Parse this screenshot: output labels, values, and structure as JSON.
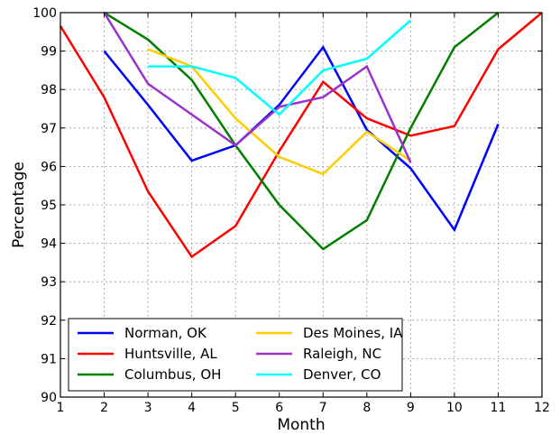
{
  "chart_data": {
    "type": "line",
    "title": "",
    "xlabel": "Month",
    "ylabel": "Percentage",
    "xlim": [
      1,
      12
    ],
    "ylim": [
      90,
      100
    ],
    "xticks": [
      1,
      2,
      3,
      4,
      5,
      6,
      7,
      8,
      9,
      10,
      11,
      12
    ],
    "yticks": [
      90,
      91,
      92,
      93,
      94,
      95,
      96,
      97,
      98,
      99,
      100
    ],
    "grid": true,
    "legend_position": "lower-left",
    "series": [
      {
        "name": "Norman, OK",
        "color": "#0000ff",
        "x": [
          2,
          3,
          4,
          5,
          6,
          7,
          8,
          9,
          10,
          11
        ],
        "y": [
          99.0,
          97.6,
          96.15,
          96.55,
          97.6,
          99.1,
          96.95,
          95.95,
          94.35,
          97.1
        ]
      },
      {
        "name": "Huntsville, AL",
        "color": "#ff0000",
        "x": [
          1,
          2,
          3,
          4,
          5,
          6,
          7,
          8,
          9,
          10,
          11,
          12
        ],
        "y": [
          99.65,
          97.8,
          95.35,
          93.65,
          94.45,
          96.4,
          98.2,
          97.25,
          96.8,
          97.05,
          99.05,
          100.0
        ]
      },
      {
        "name": "Columbus, OH",
        "color": "#007f00",
        "x": [
          2,
          3,
          4,
          5,
          6,
          7,
          8,
          9,
          10,
          11
        ],
        "y": [
          100.0,
          99.3,
          98.25,
          96.55,
          95.0,
          93.85,
          94.6,
          97.0,
          99.1,
          100.0
        ]
      },
      {
        "name": "Des Moines, IA",
        "color": "#ffcc00",
        "x": [
          3,
          4,
          5,
          6,
          7,
          8,
          9
        ],
        "y": [
          99.05,
          98.6,
          97.25,
          96.25,
          95.8,
          96.9,
          96.15
        ]
      },
      {
        "name": "Raleigh, NC",
        "color": "#9933cc",
        "x": [
          2,
          3,
          4,
          5,
          6,
          7,
          8,
          9
        ],
        "y": [
          100.0,
          98.15,
          97.35,
          96.55,
          97.55,
          97.8,
          98.6,
          96.1
        ]
      },
      {
        "name": "Denver, CO",
        "color": "#00ffff",
        "x": [
          3,
          4,
          5,
          6,
          7,
          8,
          9
        ],
        "y": [
          98.6,
          98.6,
          98.3,
          97.35,
          98.5,
          98.8,
          99.8
        ]
      }
    ]
  }
}
